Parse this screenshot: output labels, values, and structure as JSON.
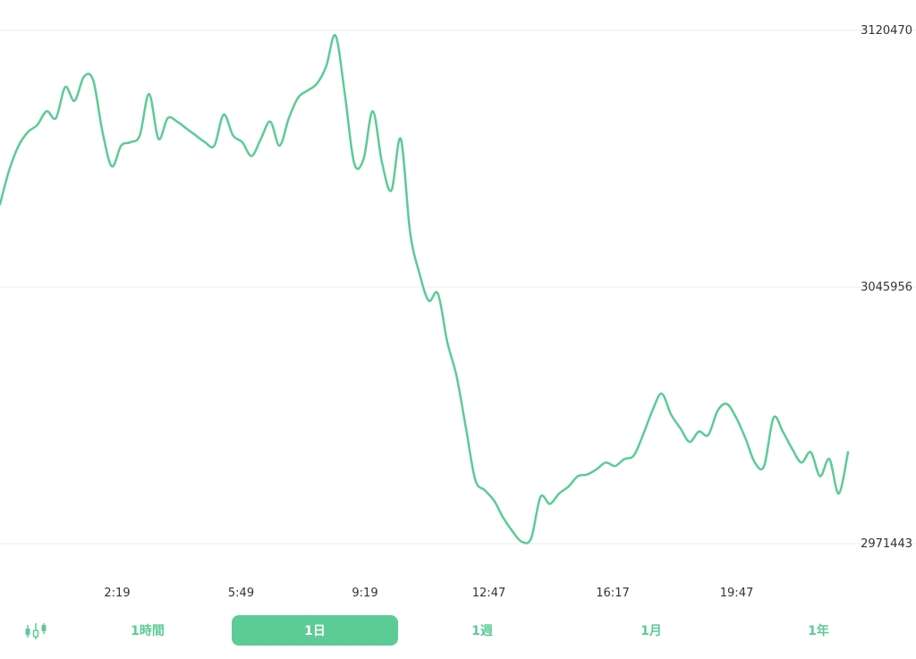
{
  "accent_color": "#5ccb96",
  "toolbar": {
    "candle_icon": "candlestick-chart-icon",
    "ranges": [
      {
        "label": "1時間",
        "active": false
      },
      {
        "label": "1日",
        "active": true
      },
      {
        "label": "1週",
        "active": false
      },
      {
        "label": "1月",
        "active": false
      },
      {
        "label": "1年",
        "active": false
      }
    ]
  },
  "chart_data": {
    "type": "line",
    "title": "",
    "xlabel": "",
    "ylabel": "",
    "y_ticks": [
      "3120470",
      "3045956",
      "2971443"
    ],
    "x_ticks": [
      "2:19",
      "5:49",
      "9:19",
      "12:47",
      "16:17",
      "19:47"
    ],
    "ylim": [
      2971443,
      3120470
    ],
    "grid": true,
    "series": [
      {
        "color": "#5ccb96",
        "values": [
          3070000,
          3080000,
          3087000,
          3091000,
          3093000,
          3097000,
          3095000,
          3104000,
          3100000,
          3107000,
          3106000,
          3091000,
          3081000,
          3087000,
          3088000,
          3090000,
          3102000,
          3089000,
          3095000,
          3094000,
          3092000,
          3090000,
          3088000,
          3087000,
          3096000,
          3090000,
          3088000,
          3084000,
          3089000,
          3094000,
          3087000,
          3095000,
          3101000,
          3103000,
          3105000,
          3110000,
          3119000,
          3102000,
          3082000,
          3083000,
          3097000,
          3082000,
          3074000,
          3089000,
          3062000,
          3050000,
          3042000,
          3044000,
          3030000,
          3020000,
          3005000,
          2990000,
          2987000,
          2984000,
          2979000,
          2975000,
          2972000,
          2973000,
          2985000,
          2983000,
          2986000,
          2988000,
          2991000,
          2991500,
          2993000,
          2995000,
          2994000,
          2996000,
          2997000,
          3003000,
          3010000,
          3015000,
          3009000,
          3005000,
          3001000,
          3004000,
          3003000,
          3010000,
          3012000,
          3008000,
          3002000,
          2995000,
          2994000,
          3008000,
          3004000,
          2999000,
          2995000,
          2998000,
          2991000,
          2996000,
          2986000,
          2998000
        ]
      }
    ]
  }
}
